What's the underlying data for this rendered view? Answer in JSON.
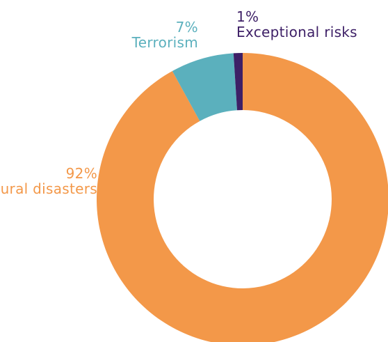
{
  "chart_data": {
    "type": "pie",
    "title": "",
    "donut": true,
    "slices": [
      {
        "label": "Natural disasters",
        "value": 92,
        "value_label": "92%",
        "color": "#f39849"
      },
      {
        "label": "Terrorism",
        "value": 7,
        "value_label": "7%",
        "color": "#5bb0bd"
      },
      {
        "label": "Exceptional risks",
        "value": 1,
        "value_label": "1%",
        "color": "#3d1f66"
      }
    ],
    "legend": "none"
  }
}
